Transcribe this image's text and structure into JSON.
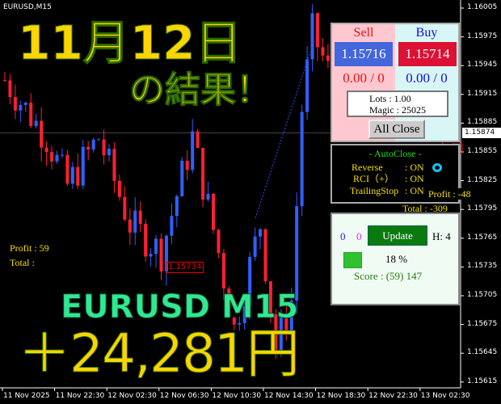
{
  "window": {
    "symbol": "EURUSD,M15"
  },
  "price_axis": {
    "ticks": [
      "1.16005",
      "1.15975",
      "1.15945",
      "1.15915",
      "1.15885",
      "1.15855",
      "1.15825",
      "1.15795",
      "1.15765",
      "1.15735",
      "1.15705",
      "1.15675",
      "1.15645",
      "1.15615"
    ],
    "current": "1.15874"
  },
  "time_axis": {
    "ticks": [
      "11 Nov 2025",
      "11 Nov 22:30",
      "12 Nov 02:30",
      "12 Nov 06:30",
      "12 Nov 10:30",
      "12 Nov 14:30",
      "12 Nov 18:30",
      "12 Nov 22:30",
      "13 Nov 02:30"
    ]
  },
  "price_path": [
    [
      0,
      1.1593
    ],
    [
      8,
      1.1587
    ],
    [
      12,
      1.1582
    ],
    [
      18,
      1.1587
    ],
    [
      24,
      1.1578
    ],
    [
      30,
      1.1575
    ],
    [
      36,
      1.1587
    ],
    [
      41,
      1.1575
    ],
    [
      44,
      1.1567
    ],
    [
      49,
      1.1578
    ],
    [
      52,
      1.1565
    ],
    [
      55,
      1.157
    ],
    [
      57,
      1.159
    ],
    [
      59,
      1.1598
    ],
    [
      62,
      1.1594
    ]
  ],
  "chart_labels": {
    "order_price": "1.15734",
    "profit": "Profit : 59",
    "total": "Total : "
  },
  "overlay": {
    "date": "11月12日",
    "result": "の結果！",
    "pair": "EURUSD M15",
    "amount": "＋24,281円"
  },
  "trade_panel": {
    "sell_label": "Sell",
    "buy_label": "Buy",
    "sell_price": "1.15716",
    "buy_price": "1.15714",
    "sell_pos": "0.00 / 0",
    "buy_pos": "0.00 / 0",
    "lots": "Lots   : 1.00",
    "magic": "Magic : 25025",
    "all_close": "All Close"
  },
  "auto_close": {
    "title": "- AutoClose -",
    "reverse": "Reverse",
    "reverse_val": ": ON",
    "rci": "RCI（+）",
    "rci_val": ": ON",
    "trailing": "TrailingStop",
    "trailing_val": ": ON",
    "profit": "Profit : -48",
    "total": "Total : -309"
  },
  "score_panel": {
    "count_buy": "0",
    "count_sell": "0",
    "update": "Update",
    "h": "H: 4",
    "percent": "18 %",
    "score": "Score : (59) 147"
  },
  "colors": {
    "bull": "#3060ff",
    "bear": "#ff2030",
    "panel_sell": "#4466dd",
    "panel_buy": "#dd1133",
    "update": "#0a7a10"
  }
}
